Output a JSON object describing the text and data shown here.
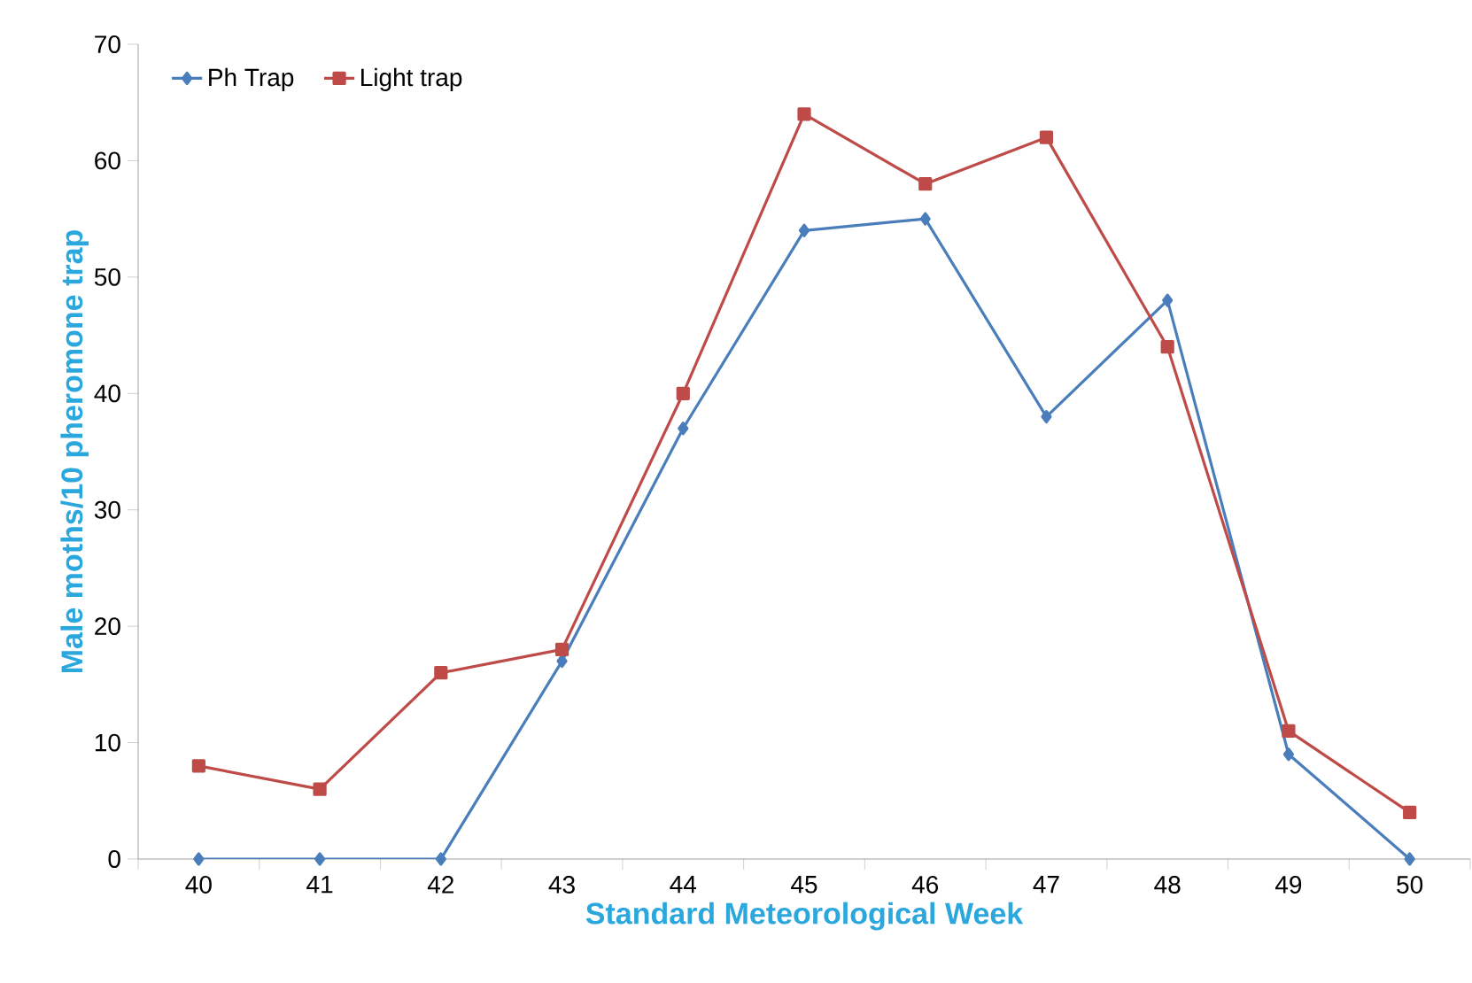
{
  "chart_data": {
    "type": "line",
    "xlabel": "Standard Meteorological Week",
    "ylabel": "Male moths/10 pheromone trap",
    "categories": [
      "40",
      "41",
      "42",
      "43",
      "44",
      "45",
      "46",
      "47",
      "48",
      "49",
      "50"
    ],
    "series": [
      {
        "name": "Ph Trap",
        "color": "#4a7ebb",
        "marker": "diamond",
        "values": [
          0,
          0,
          0,
          17,
          37,
          54,
          55,
          38,
          48,
          9,
          0
        ]
      },
      {
        "name": "Light trap",
        "color": "#be4b48",
        "marker": "square",
        "values": [
          8,
          6,
          16,
          18,
          40,
          64,
          58,
          62,
          44,
          11,
          4
        ]
      }
    ],
    "ylim": [
      0,
      70
    ],
    "yticks": [
      0,
      10,
      20,
      30,
      40,
      50,
      60,
      70
    ],
    "grid": false,
    "legend": "top left",
    "line_style": "solid"
  }
}
